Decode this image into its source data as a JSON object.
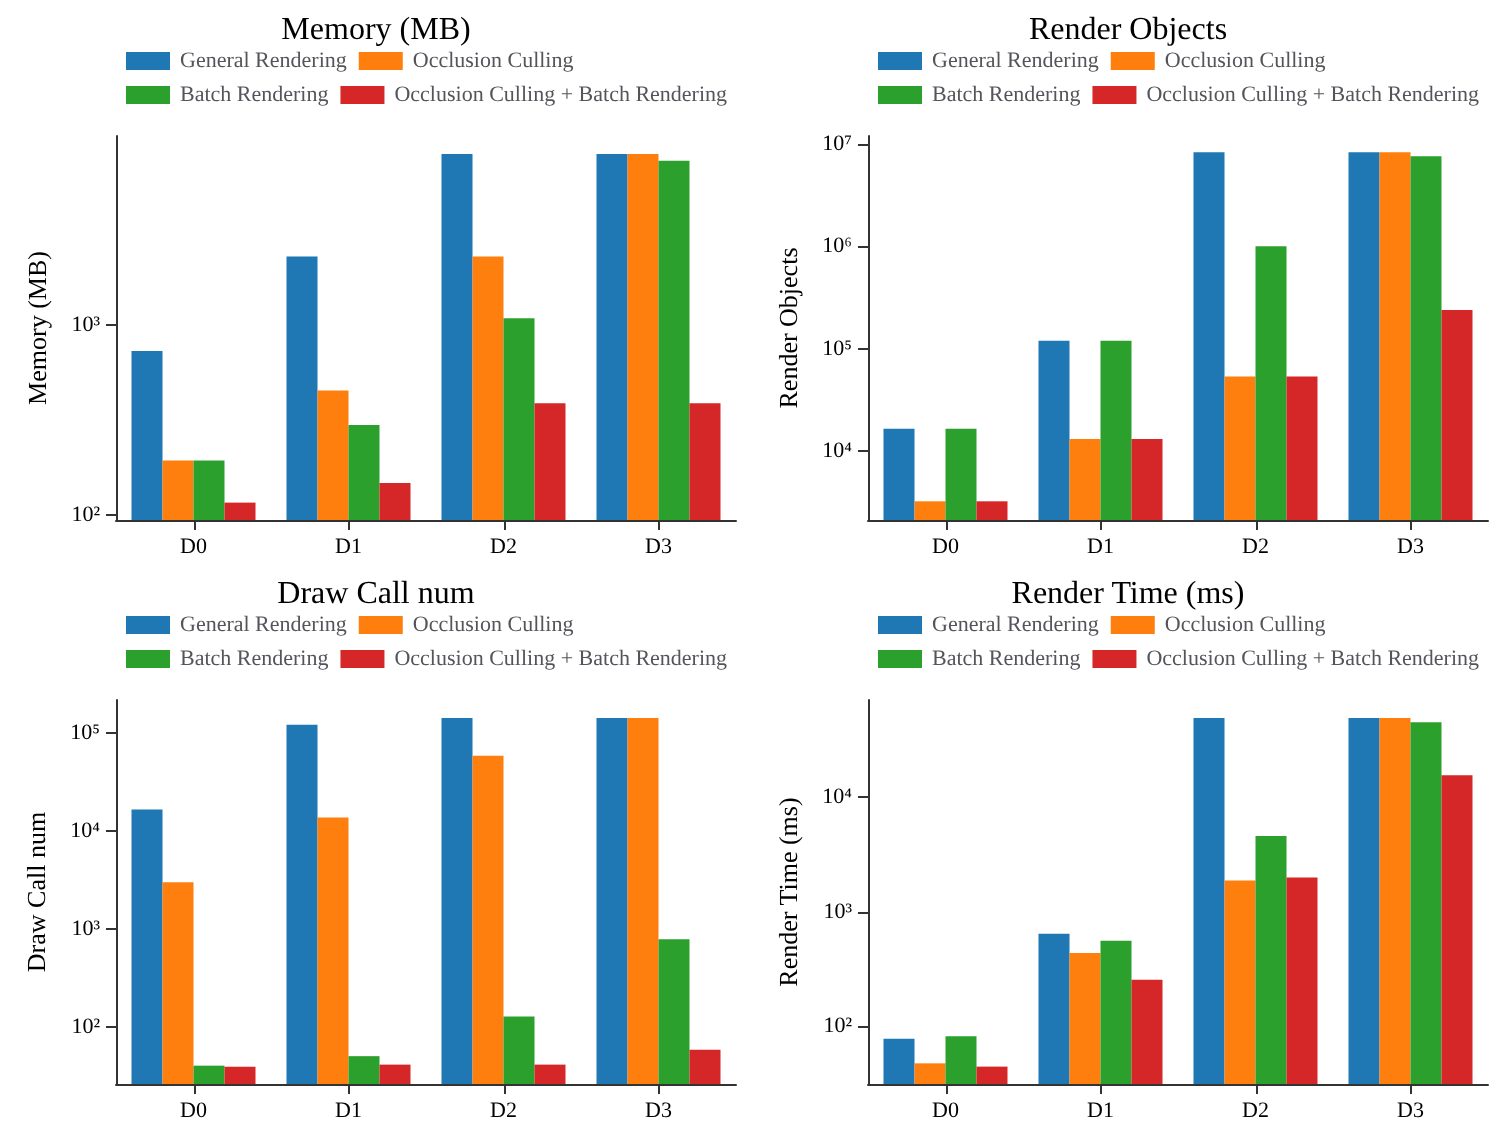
{
  "chart_data": [
    {
      "type": "bar",
      "title": "Memory (MB)",
      "ylabel": "Memory (MB)",
      "categories": [
        "D0",
        "D1",
        "D2",
        "D3"
      ],
      "log": "y",
      "grid": false,
      "legend": "top",
      "ylim": [
        94,
        9800
      ],
      "yticks": [
        {
          "value": 100,
          "label": "10²"
        },
        {
          "value": 1000,
          "label": "10³"
        }
      ],
      "series": [
        {
          "name": "General Rendering",
          "color": "#1f77b4",
          "values": [
            727,
            2280,
            7890,
            7890
          ]
        },
        {
          "name": "Occlusion Culling",
          "color": "#ff7f0e",
          "values": [
            193,
            450,
            2280,
            7890
          ]
        },
        {
          "name": "Batch Rendering",
          "color": "#2ca02c",
          "values": [
            193,
            297,
            1080,
            7260
          ]
        },
        {
          "name": "Occlusion Culling + Batch Rendering",
          "color": "#d62728",
          "values": [
            116,
            147,
            386,
            386
          ]
        }
      ]
    },
    {
      "type": "bar",
      "title": "Render Objects",
      "ylabel": "Render Objects",
      "categories": [
        "D0",
        "D1",
        "D2",
        "D3"
      ],
      "log": "y",
      "grid": false,
      "legend": "top",
      "ylim": [
        2100,
        12000000
      ],
      "yticks": [
        {
          "value": 10000,
          "label": "10⁴"
        },
        {
          "value": 100000,
          "label": "10⁵"
        },
        {
          "value": 1000000,
          "label": "10⁶"
        },
        {
          "value": 10000000,
          "label": "10⁷"
        }
      ],
      "series": [
        {
          "name": "General Rendering",
          "color": "#1f77b4",
          "values": [
            16400,
            119000,
            8300000,
            8300000
          ]
        },
        {
          "name": "Occlusion Culling",
          "color": "#ff7f0e",
          "values": [
            3200,
            13000,
            53300,
            8300000
          ]
        },
        {
          "name": "Batch Rendering",
          "color": "#2ca02c",
          "values": [
            16400,
            119000,
            1000000,
            7600000
          ]
        },
        {
          "name": "Occlusion Culling + Batch Rendering",
          "color": "#d62728",
          "values": [
            3200,
            13000,
            53300,
            238000
          ]
        }
      ]
    },
    {
      "type": "bar",
      "title": "Draw Call num",
      "ylabel": "Draw Call num",
      "categories": [
        "D0",
        "D1",
        "D2",
        "D3"
      ],
      "log": "y",
      "grid": false,
      "legend": "top",
      "ylim": [
        26,
        215000
      ],
      "yticks": [
        {
          "value": 100,
          "label": "10²"
        },
        {
          "value": 1000,
          "label": "10³"
        },
        {
          "value": 10000,
          "label": "10⁴"
        },
        {
          "value": 100000,
          "label": "10⁵"
        }
      ],
      "series": [
        {
          "name": "General Rendering",
          "color": "#1f77b4",
          "values": [
            16400,
            120000,
            141000,
            141000
          ]
        },
        {
          "name": "Occlusion Culling",
          "color": "#ff7f0e",
          "values": [
            2970,
            13600,
            58000,
            141000
          ]
        },
        {
          "name": "Batch Rendering",
          "color": "#2ca02c",
          "values": [
            40,
            50,
            127,
            780
          ]
        },
        {
          "name": "Occlusion Culling + Batch Rendering",
          "color": "#d62728",
          "values": [
            39,
            41,
            41,
            58
          ]
        }
      ]
    },
    {
      "type": "bar",
      "title": "Render Time (ms)",
      "ylabel": "Render Time (ms)",
      "categories": [
        "D0",
        "D1",
        "D2",
        "D3"
      ],
      "log": "y",
      "grid": false,
      "legend": "top",
      "ylim": [
        31,
        71000
      ],
      "yticks": [
        {
          "value": 100,
          "label": "10²"
        },
        {
          "value": 1000,
          "label": "10³"
        },
        {
          "value": 10000,
          "label": "10⁴"
        }
      ],
      "series": [
        {
          "name": "General Rendering",
          "color": "#1f77b4",
          "values": [
            77,
            640,
            49400,
            49400
          ]
        },
        {
          "name": "Occlusion Culling",
          "color": "#ff7f0e",
          "values": [
            47,
            435,
            1870,
            49400
          ]
        },
        {
          "name": "Batch Rendering",
          "color": "#2ca02c",
          "values": [
            81,
            556,
            4590,
            45400
          ]
        },
        {
          "name": "Occlusion Culling + Batch Rendering",
          "color": "#d62728",
          "values": [
            44,
            253,
            1990,
            15600
          ]
        }
      ]
    }
  ]
}
